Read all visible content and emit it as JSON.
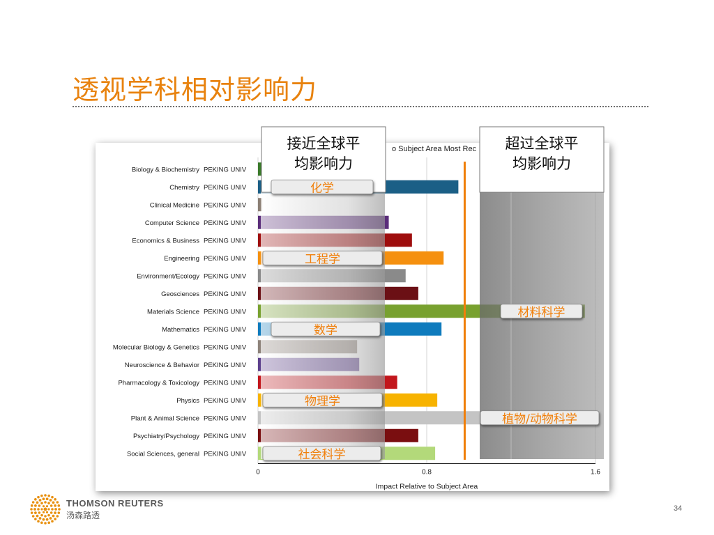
{
  "slide": {
    "title": "透视学科相对影响力",
    "page_number": "34",
    "brand_en": "THOMSON REUTERS",
    "brand_cn": "汤森路透"
  },
  "callouts": {
    "near_box": "接近全球平均影响力",
    "above_box": "超过全球平均影响力"
  },
  "highlight_labels": [
    {
      "text": "化学",
      "row": 1,
      "color": "#f07f0a"
    },
    {
      "text": "工程学",
      "row": 5,
      "color": "#f07f0a"
    },
    {
      "text": "数学",
      "row": 9,
      "color": "#f07f0a"
    },
    {
      "text": "物理学",
      "row": 13,
      "color": "#f07f0a"
    },
    {
      "text": "社会科学",
      "row": 16,
      "color": "#f07f0a"
    },
    {
      "text": "材料科学",
      "row": 8,
      "color": "#f07f0a"
    },
    {
      "text": "植物/动物科学",
      "row": 14,
      "color": "#f07f0a"
    }
  ],
  "chart_data": {
    "type": "bar",
    "orientation": "horizontal",
    "title_visible": "o Subject Area Most Rec",
    "xlabel": "Impact Relative to Subject Area",
    "xlim": [
      0,
      1.6
    ],
    "xticks": [
      "0",
      "0.8",
      "1.6"
    ],
    "reference_line": 0.98,
    "institution": "PEKING UNIV",
    "categories": [
      "Biology & Biochemistry",
      "Chemistry",
      "Clinical Medicine",
      "Computer Science",
      "Economics & Business",
      "Engineering",
      "Environment/Ecology",
      "Geosciences",
      "Materials Science",
      "Mathematics",
      "Molecular Biology & Genetics",
      "Neuroscience & Behavior",
      "Pharmacology & Toxicology",
      "Physics",
      "Plant & Animal Science",
      "Psychiatry/Psychology",
      "Social Sciences, general"
    ],
    "values": [
      0.02,
      0.95,
      0.02,
      0.62,
      0.73,
      0.88,
      0.7,
      0.76,
      1.55,
      0.87,
      0.47,
      0.48,
      0.66,
      0.85,
      1.35,
      0.76,
      0.84
    ],
    "colors": [
      "#3a7a2a",
      "#1b5f86",
      "#8b7e74",
      "#5a2d7a",
      "#9e0d0d",
      "#f5900f",
      "#8a8a8a",
      "#6b1015",
      "#78a12f",
      "#0f7bbd",
      "#8d827a",
      "#5c3f8c",
      "#c2161c",
      "#f7b300",
      "#c4c4c4",
      "#7a0e10",
      "#b3d97a"
    ],
    "grid": "vertical",
    "legend": "none"
  }
}
